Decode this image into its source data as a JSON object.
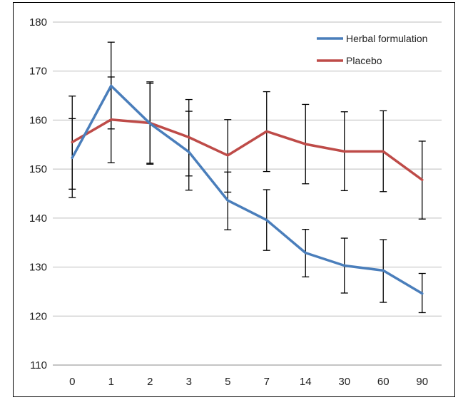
{
  "chart_data": {
    "type": "line",
    "title": "",
    "xlabel": "",
    "ylabel": "",
    "categories": [
      "0",
      "1",
      "2",
      "3",
      "5",
      "7",
      "14",
      "30",
      "60",
      "90"
    ],
    "ylim": [
      110,
      180
    ],
    "yticks": [
      110,
      120,
      130,
      140,
      150,
      160,
      170,
      180
    ],
    "grid": "horizontal",
    "legend_position": "top-right",
    "series": [
      {
        "name": "Herbal formulation",
        "color": "#4a7ebb",
        "values": [
          152.3,
          167.0,
          159.3,
          153.5,
          143.6,
          139.6,
          132.9,
          130.3,
          129.3,
          124.6
        ],
        "error_low": [
          144.2,
          158.2,
          151.2,
          145.7,
          137.6,
          133.4,
          128.0,
          124.7,
          122.8,
          120.7
        ],
        "error_high": [
          160.3,
          175.9,
          167.5,
          161.8,
          149.4,
          145.8,
          137.7,
          135.9,
          135.6,
          128.7
        ]
      },
      {
        "name": "Placebo",
        "color": "#be4b48",
        "values": [
          155.5,
          160.1,
          159.4,
          156.5,
          152.8,
          157.7,
          155.1,
          153.6,
          153.6,
          147.8
        ],
        "error_low": [
          145.9,
          151.3,
          151.0,
          148.6,
          145.3,
          149.5,
          147.0,
          145.6,
          145.4,
          139.8
        ],
        "error_high": [
          164.9,
          168.8,
          167.8,
          164.2,
          160.1,
          165.8,
          163.2,
          161.7,
          161.9,
          155.7
        ]
      }
    ]
  }
}
